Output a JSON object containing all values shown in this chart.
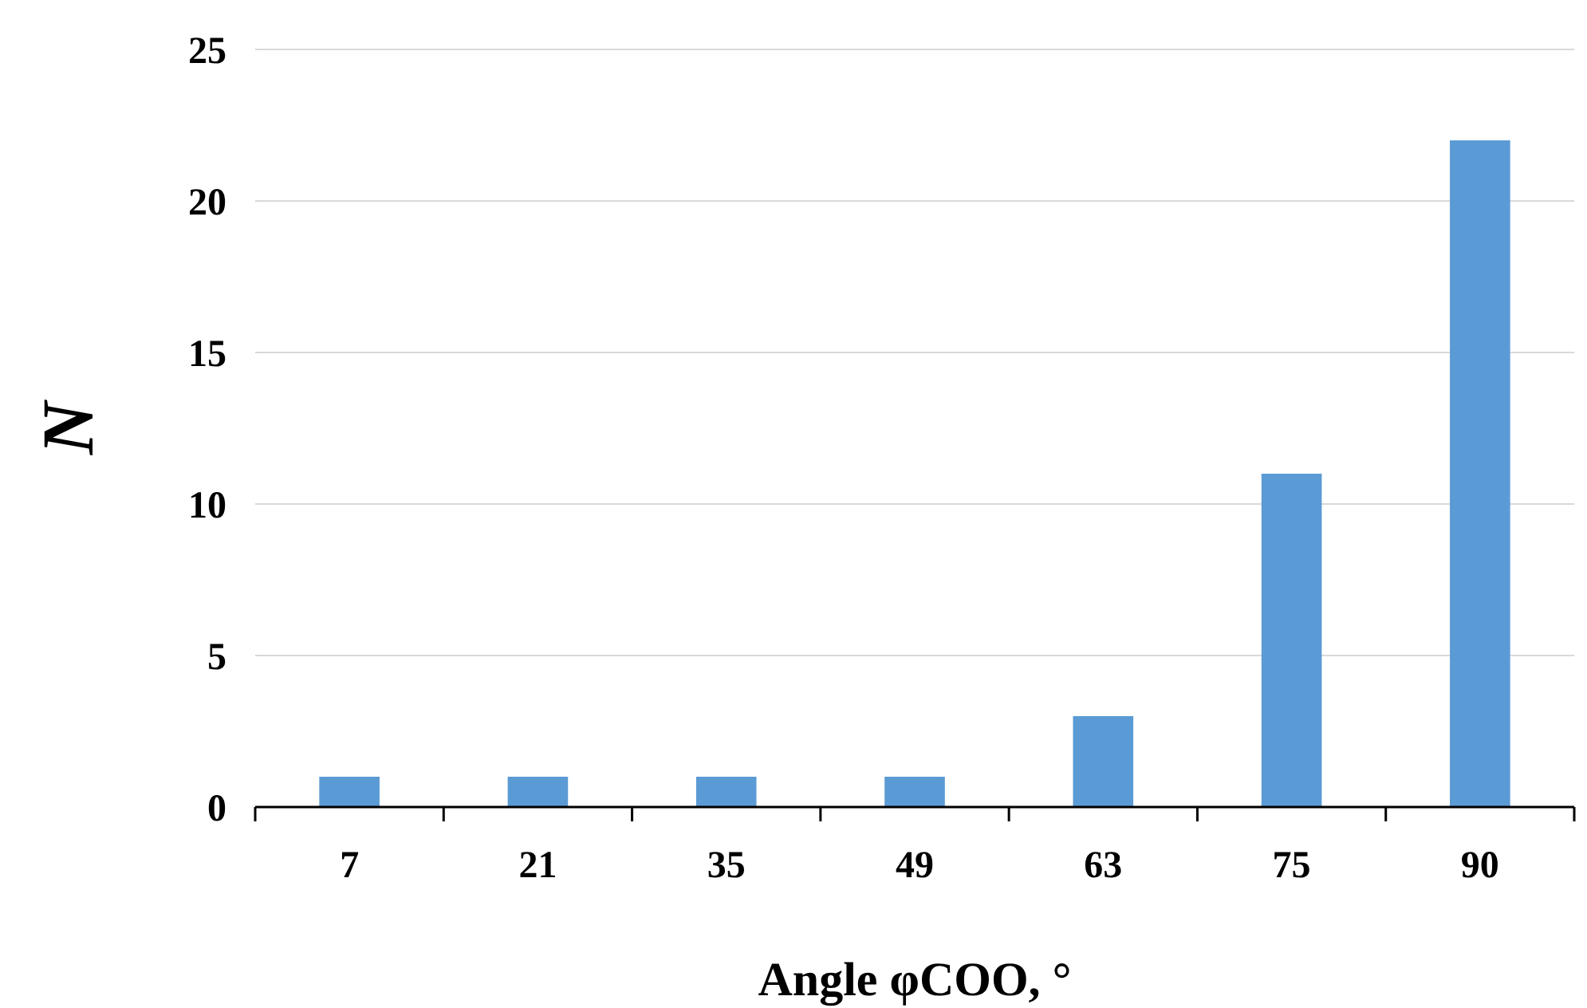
{
  "chart_data": {
    "type": "bar",
    "xlabel": "Angle φCOO, °",
    "ylabel": "N",
    "categories": [
      "7",
      "21",
      "35",
      "49",
      "63",
      "75",
      "90"
    ],
    "values": [
      1,
      1,
      1,
      1,
      3,
      11,
      22
    ],
    "color": "#5b9bd5",
    "ylim": [
      0,
      25
    ],
    "yticks": [
      0,
      5,
      10,
      15,
      20,
      25
    ],
    "grid": "y"
  }
}
